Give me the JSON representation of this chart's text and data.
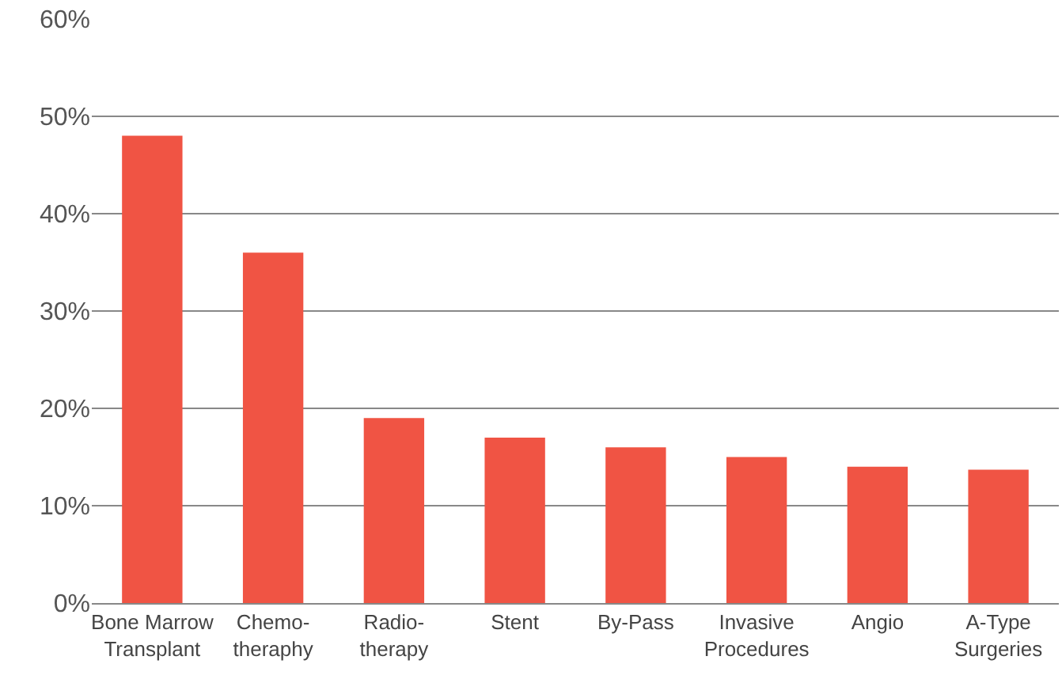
{
  "chart_data": {
    "type": "bar",
    "categories": [
      "Bone Marrow\nTransplant",
      "Chemo-\ntheraphy",
      "Radio-\ntherapy",
      "Stent",
      "By-Pass",
      "Invasive\nProcedures",
      "Angio",
      "A-Type\nSurgeries"
    ],
    "values": [
      48,
      36,
      19,
      17,
      16,
      15,
      14,
      13.7
    ],
    "color": "#f05444",
    "ylim": [
      0,
      60
    ],
    "yticks": [
      {
        "value": 0,
        "label": "0%"
      },
      {
        "value": 10,
        "label": "10%"
      },
      {
        "value": 20,
        "label": "20%"
      },
      {
        "value": 30,
        "label": "30%"
      },
      {
        "value": 40,
        "label": "40%"
      },
      {
        "value": 50,
        "label": "50%"
      },
      {
        "value": 60,
        "label": "60%"
      }
    ],
    "grid": "y",
    "legend": false
  }
}
